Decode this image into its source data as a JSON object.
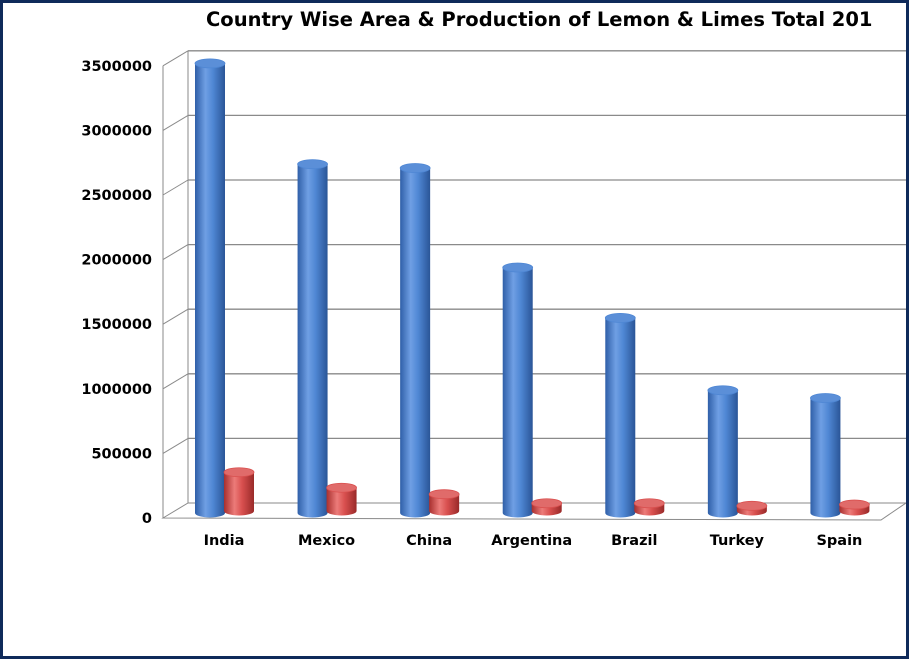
{
  "chart_data": {
    "type": "bar",
    "title": "Country Wise Area & Production of Lemon & Limes Total 201",
    "categories": [
      "India",
      "Mexico",
      "China",
      "Argentina",
      "Brazil",
      "Turkey",
      "Spain"
    ],
    "series": [
      {
        "values": [
          3480000,
          2700000,
          2670000,
          1900000,
          1510000,
          950000,
          890000
        ],
        "color": "#4f87d4"
      },
      {
        "values": [
          300000,
          180000,
          130000,
          60000,
          60000,
          40000,
          50000
        ],
        "color": "#d9504f"
      }
    ],
    "ylim": [
      0,
      3500000
    ],
    "yticks": [
      "0",
      "500000",
      "1000000",
      "1500000",
      "2000000",
      "2500000",
      "3000000",
      "3500000"
    ],
    "xlabel": "",
    "ylabel": "",
    "grid": true,
    "legend": "none",
    "style": "3d-cylinder"
  }
}
